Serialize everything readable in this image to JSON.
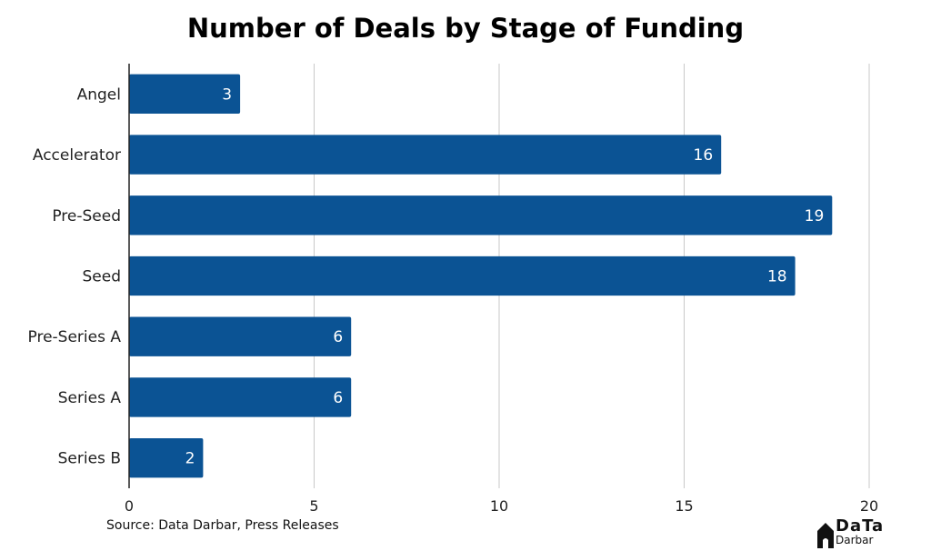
{
  "chart_data": {
    "type": "bar",
    "orientation": "horizontal",
    "title": "Number of Deals by Stage of Funding",
    "categories": [
      "Angel",
      "Accelerator",
      "Pre-Seed",
      "Seed",
      "Pre-Series A",
      "Series A",
      "Series B"
    ],
    "values": [
      3,
      16,
      19,
      18,
      6,
      6,
      2
    ],
    "xlim": [
      0,
      20
    ],
    "xticks": [
      0,
      5,
      10,
      15,
      20
    ],
    "grid": "vertical",
    "bar_color": "#0b5394",
    "data_labels": "inside-end"
  },
  "source": "Source: Data Darbar, Press Releases",
  "logo": {
    "text_top": "DaTa",
    "text_bottom": "Darbar",
    "icon": "house-icon",
    "accent": "#1f5fa8"
  }
}
